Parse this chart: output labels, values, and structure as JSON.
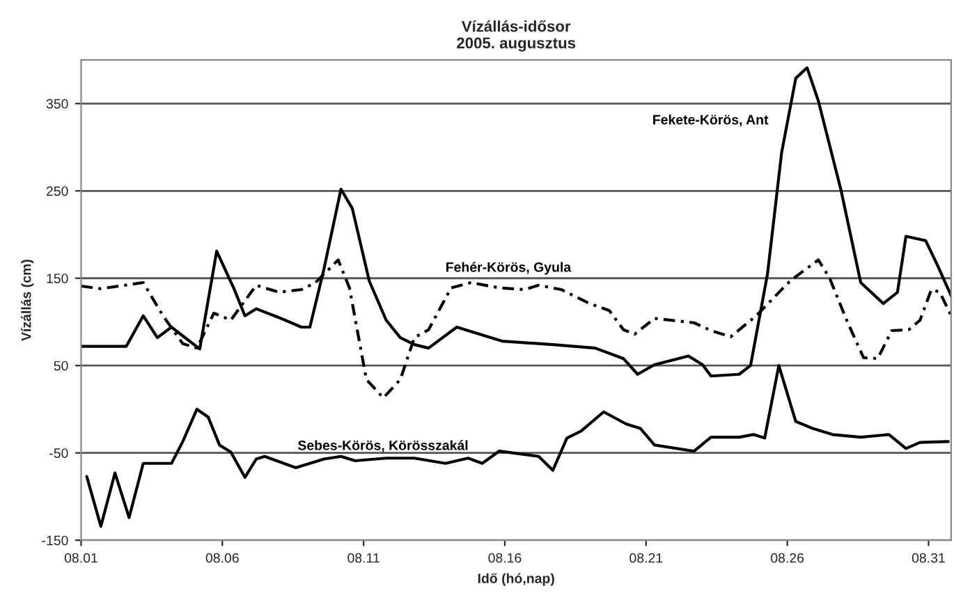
{
  "chart_data": {
    "type": "line",
    "title": "Vízállás-idősor\n2005. augusztus",
    "xlabel": "Idő (hó,nap)",
    "ylabel": "Vízállás (cm)",
    "xlim": [
      "2005-08-01T00:00",
      "2005-08-31T19:12"
    ],
    "xticks": [
      {
        "value": "2005-08-01",
        "label": "08.01"
      },
      {
        "value": "2005-08-06",
        "label": "08.06"
      },
      {
        "value": "2005-08-11",
        "label": "08.11"
      },
      {
        "value": "2005-08-16",
        "label": "08.16"
      },
      {
        "value": "2005-08-21",
        "label": "08.21"
      },
      {
        "value": "2005-08-26",
        "label": "08.26"
      },
      {
        "value": "2005-08-31",
        "label": "08.31"
      }
    ],
    "ylim": [
      -150,
      400
    ],
    "yticks": [
      -150,
      -50,
      50,
      150,
      250,
      350
    ],
    "grid": "y",
    "series": [
      {
        "name": "Fekete-Körös, Ant",
        "color": "#000000",
        "line_style": "solid",
        "x": [
          "2005-08-01T00:00",
          "2005-08-02T14:24",
          "2005-08-03T04:48",
          "2005-08-03T16:48",
          "2005-08-04T04:48",
          "2005-08-05T04:48",
          "2005-08-05T19:12",
          "2005-08-06T09:36",
          "2005-08-06T19:12",
          "2005-08-07T04:48",
          "2005-08-08T00:00",
          "2005-08-08T19:12",
          "2005-08-09T02:24",
          "2005-08-09T14:24",
          "2005-08-10T04:48",
          "2005-08-10T14:24",
          "2005-08-11T04:48",
          "2005-08-11T19:12",
          "2005-08-12T07:12",
          "2005-08-12T19:12",
          "2005-08-13T07:12",
          "2005-08-14T07:12",
          "2005-08-15T21:36",
          "2005-08-17T16:48",
          "2005-08-19T04:48",
          "2005-08-20T04:48",
          "2005-08-20T16:48",
          "2005-08-21T07:12",
          "2005-08-22T12:00",
          "2005-08-23T00:00",
          "2005-08-23T07:12",
          "2005-08-24T07:12",
          "2005-08-24T16:48",
          "2005-08-25T07:12",
          "2005-08-25T19:12",
          "2005-08-26T07:12",
          "2005-08-26T16:48",
          "2005-08-27T02:24",
          "2005-08-27T21:36",
          "2005-08-28T14:24",
          "2005-08-29T09:36",
          "2005-08-29T21:36",
          "2005-08-30T04:48",
          "2005-08-30T21:36",
          "2005-08-31T07:12",
          "2005-08-31T19:12"
        ],
        "values": [
          72,
          72,
          107,
          82,
          94,
          69,
          181,
          139,
          107,
          115,
          105,
          94,
          94,
          161,
          252,
          230,
          147,
          102,
          82,
          74,
          70,
          94,
          78,
          74,
          70,
          58,
          40,
          51,
          61,
          51,
          38,
          40,
          50,
          155,
          294,
          379,
          391,
          353,
          251,
          145,
          121,
          134,
          198,
          193,
          166,
          130
        ]
      },
      {
        "name": "Fehér-Körös, Gyula",
        "color": "#000000",
        "line_style": "dashed",
        "x": [
          "2005-08-01T00:00",
          "2005-08-01T16:48",
          "2005-08-03T04:48",
          "2005-08-03T21:36",
          "2005-08-04T14:24",
          "2005-08-05T02:24",
          "2005-08-05T16:48",
          "2005-08-06T07:12",
          "2005-08-07T04:48",
          "2005-08-08T00:00",
          "2005-08-08T19:12",
          "2005-08-09T07:12",
          "2005-08-10T02:24",
          "2005-08-10T12:00",
          "2005-08-11T02:24",
          "2005-08-11T16:48",
          "2005-08-12T07:12",
          "2005-08-12T19:12",
          "2005-08-13T07:12",
          "2005-08-14T02:24",
          "2005-08-14T19:12",
          "2005-08-15T19:12",
          "2005-08-16T16:48",
          "2005-08-17T04:48",
          "2005-08-18T00:00",
          "2005-08-19T00:00",
          "2005-08-19T16:48",
          "2005-08-20T04:48",
          "2005-08-20T14:24",
          "2005-08-21T07:12",
          "2005-08-22T16:48",
          "2005-08-23T07:12",
          "2005-08-24T00:00",
          "2005-08-24T21:36",
          "2005-08-26T02:24",
          "2005-08-27T02:24",
          "2005-08-27T12:00",
          "2005-08-28T02:24",
          "2005-08-28T16:48",
          "2005-08-29T04:48",
          "2005-08-29T16:48",
          "2005-08-30T07:12",
          "2005-08-30T16:48",
          "2005-08-31T02:24",
          "2005-08-31T09:36",
          "2005-08-31T19:12"
        ],
        "values": [
          141,
          138,
          145,
          107,
          75,
          70,
          110,
          102,
          142,
          134,
          137,
          145,
          171,
          139,
          34,
          13,
          34,
          82,
          91,
          139,
          145,
          139,
          137,
          142,
          137,
          121,
          113,
          91,
          86,
          104,
          99,
          90,
          83,
          107,
          147,
          171,
          150,
          102,
          59,
          58,
          90,
          91,
          102,
          137,
          134,
          107
        ]
      },
      {
        "name": "Sebes-Körös, Körösszakál",
        "color": "#000000",
        "line_style": "solid",
        "x": [
          "2005-08-01T04:48",
          "2005-08-01T16:48",
          "2005-08-02T04:48",
          "2005-08-02T16:48",
          "2005-08-03T04:48",
          "2005-08-04T04:48",
          "2005-08-04T14:24",
          "2005-08-05T02:24",
          "2005-08-05T12:00",
          "2005-08-05T21:36",
          "2005-08-06T07:12",
          "2005-08-06T19:12",
          "2005-08-07T04:48",
          "2005-08-07T12:00",
          "2005-08-08T14:24",
          "2005-08-09T14:24",
          "2005-08-10T04:48",
          "2005-08-10T16:48",
          "2005-08-11T19:12",
          "2005-08-12T19:12",
          "2005-08-13T21:36",
          "2005-08-14T16:48",
          "2005-08-15T04:48",
          "2005-08-15T19:12",
          "2005-08-17T04:48",
          "2005-08-17T16:48",
          "2005-08-18T04:48",
          "2005-08-18T16:48",
          "2005-08-19T12:00",
          "2005-08-20T07:12",
          "2005-08-20T19:12",
          "2005-08-21T07:12",
          "2005-08-22T16:48",
          "2005-08-23T07:12",
          "2005-08-24T07:12",
          "2005-08-24T19:12",
          "2005-08-25T04:48",
          "2005-08-25T16:48",
          "2005-08-26T07:12",
          "2005-08-26T21:36",
          "2005-08-27T14:24",
          "2005-08-28T14:24",
          "2005-08-29T14:24",
          "2005-08-30T04:48",
          "2005-08-30T16:48",
          "2005-08-31T16:48"
        ],
        "values": [
          -77,
          -134,
          -73,
          -124,
          -62,
          -62,
          -37,
          0,
          -9,
          -41,
          -49,
          -78,
          -57,
          -54,
          -67,
          -57,
          -54,
          -59,
          -56,
          -56,
          -62,
          -56,
          -62,
          -48,
          -54,
          -70,
          -33,
          -25,
          -3,
          -17,
          -22,
          -41,
          -48,
          -32,
          -32,
          -29,
          -33,
          50,
          -14,
          -22,
          -29,
          -32,
          -29,
          -45,
          -38,
          -37
        ]
      }
    ]
  }
}
